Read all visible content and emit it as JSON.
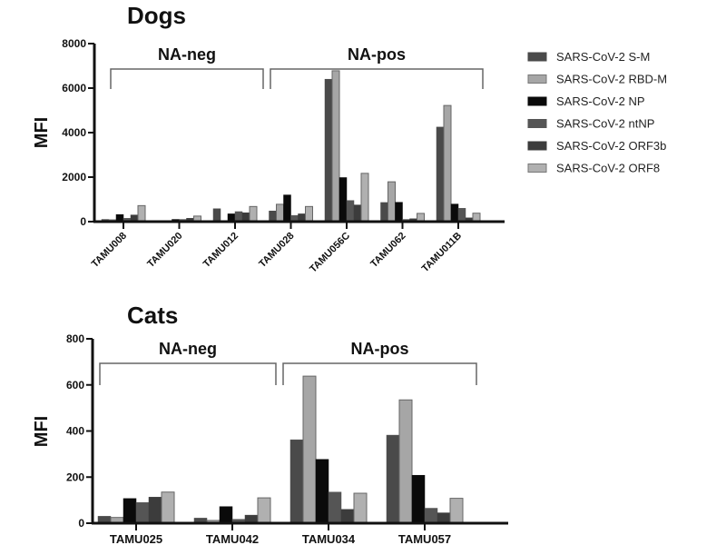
{
  "chart_data": [
    {
      "type": "bar",
      "title": "Dogs",
      "xlabel": "",
      "ylabel": "MFI",
      "ylim": [
        0,
        8000
      ],
      "yticks": [
        0,
        2000,
        4000,
        6000,
        8000
      ],
      "categories": [
        "TAMU008",
        "TAMU020",
        "TAMU012",
        "TAMU028",
        "TAMU056C",
        "TAMU062",
        "TAMU011B"
      ],
      "groups": [
        {
          "label": "NA-neg",
          "categories": [
            "TAMU008",
            "TAMU020",
            "TAMU012"
          ]
        },
        {
          "label": "NA-pos",
          "categories": [
            "TAMU028",
            "TAMU056C",
            "TAMU062",
            "TAMU011B"
          ]
        }
      ],
      "series": [
        {
          "name": "SARS-CoV-2 S-M",
          "values": [
            100,
            20,
            580,
            480,
            6400,
            860,
            4250
          ]
        },
        {
          "name": "SARS-CoV-2 RBD-M",
          "values": [
            80,
            20,
            20,
            780,
            6780,
            1790,
            5220
          ]
        },
        {
          "name": "SARS-CoV-2 NP",
          "values": [
            320,
            100,
            350,
            1200,
            1980,
            870,
            790
          ]
        },
        {
          "name": "SARS-CoV-2 ntNP",
          "values": [
            150,
            100,
            450,
            280,
            950,
            100,
            600
          ]
        },
        {
          "name": "SARS-CoV-2 ORF3b",
          "values": [
            300,
            150,
            400,
            350,
            750,
            130,
            170
          ]
        },
        {
          "name": "SARS-CoV-2 ORF8",
          "values": [
            720,
            250,
            680,
            680,
            2170,
            370,
            380
          ]
        }
      ],
      "x_tick_rotation": "45deg",
      "legend": "right"
    },
    {
      "type": "bar",
      "title": "Cats",
      "xlabel": "",
      "ylabel": "MFI",
      "ylim": [
        0,
        800
      ],
      "yticks": [
        0,
        200,
        400,
        600,
        800
      ],
      "categories": [
        "TAMU025",
        "TAMU042",
        "TAMU034",
        "TAMU057"
      ],
      "groups": [
        {
          "label": "NA-neg",
          "categories": [
            "TAMU025",
            "TAMU042"
          ]
        },
        {
          "label": "NA-pos",
          "categories": [
            "TAMU034",
            "TAMU057"
          ]
        }
      ],
      "series": [
        {
          "name": "SARS-CoV-2 S-M",
          "values": [
            30,
            22,
            362,
            382
          ]
        },
        {
          "name": "SARS-CoV-2 RBD-M",
          "values": [
            25,
            12,
            638,
            535
          ]
        },
        {
          "name": "SARS-CoV-2 NP",
          "values": [
            107,
            72,
            277,
            208
          ]
        },
        {
          "name": "SARS-CoV-2 ntNP",
          "values": [
            90,
            17,
            135,
            65
          ]
        },
        {
          "name": "SARS-CoV-2 ORF3b",
          "values": [
            113,
            35,
            60,
            45
          ]
        },
        {
          "name": "SARS-CoV-2 ORF8",
          "values": [
            135,
            110,
            130,
            108
          ]
        }
      ],
      "x_tick_rotation": "0deg",
      "legend": "shared-right"
    }
  ],
  "series_colors": [
    "#4a4a4a",
    "#a6a6a6",
    "#0a0a0a",
    "#555555",
    "#3c3c3c",
    "#b0b0b0"
  ],
  "legend": {
    "items": [
      "SARS-CoV-2 S-M",
      "SARS-CoV-2 RBD-M",
      "SARS-CoV-2 NP",
      "SARS-CoV-2 ntNP",
      "SARS-CoV-2 ORF3b",
      "SARS-CoV-2 ORF8"
    ]
  }
}
